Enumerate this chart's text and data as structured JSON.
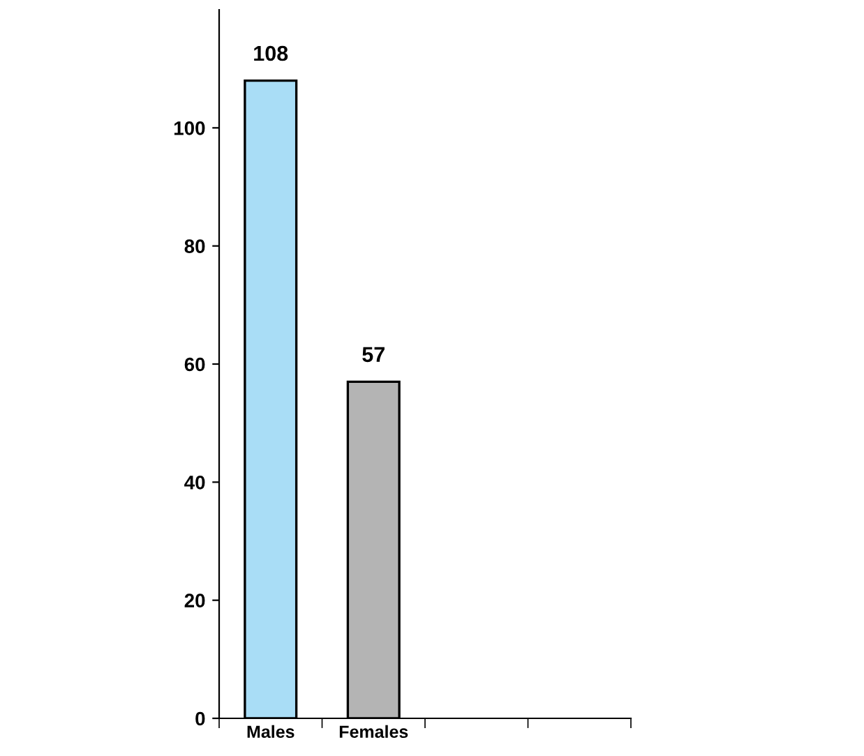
{
  "chart_data": {
    "type": "bar",
    "categories": [
      "Males",
      "Females",
      null,
      null
    ],
    "values": [
      108,
      57,
      null,
      null
    ],
    "colors": [
      "#a9ddf6",
      "#b4b4b4",
      "#b4b4b4",
      "#b4b4b4"
    ],
    "ylim": [
      0,
      120
    ],
    "yticks": [
      0,
      20,
      40,
      60,
      80,
      100
    ],
    "data_labels": true,
    "grid": false
  }
}
